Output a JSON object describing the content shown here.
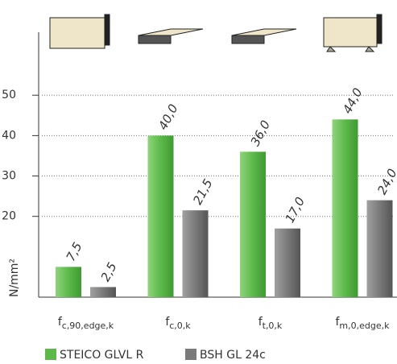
{
  "chart_data": {
    "type": "bar",
    "y_axis_label": "N/mm²",
    "categories": [
      {
        "main": "f",
        "sub": "c,90,edge,k"
      },
      {
        "main": "f",
        "sub": "c,0,k"
      },
      {
        "main": "f",
        "sub": "t,0,k"
      },
      {
        "main": "f",
        "sub": "m,0,edge,k"
      }
    ],
    "series": [
      {
        "name": "STEICO GLVL R",
        "color": "#5cb94a",
        "values": [
          7.5,
          40.0,
          36.0,
          44.0
        ],
        "value_labels": [
          "7,5",
          "40,0",
          "36,0",
          "44,0"
        ]
      },
      {
        "name": "BSH GL 24c",
        "color": "#7a7a7a",
        "values": [
          2.5,
          21.5,
          17.0,
          24.0
        ],
        "value_labels": [
          "2,5",
          "21,5",
          "17,0",
          "24,0"
        ]
      }
    ],
    "ylim": [
      0,
      65
    ],
    "yticks": [
      20,
      30,
      40,
      50
    ],
    "grid": true
  }
}
